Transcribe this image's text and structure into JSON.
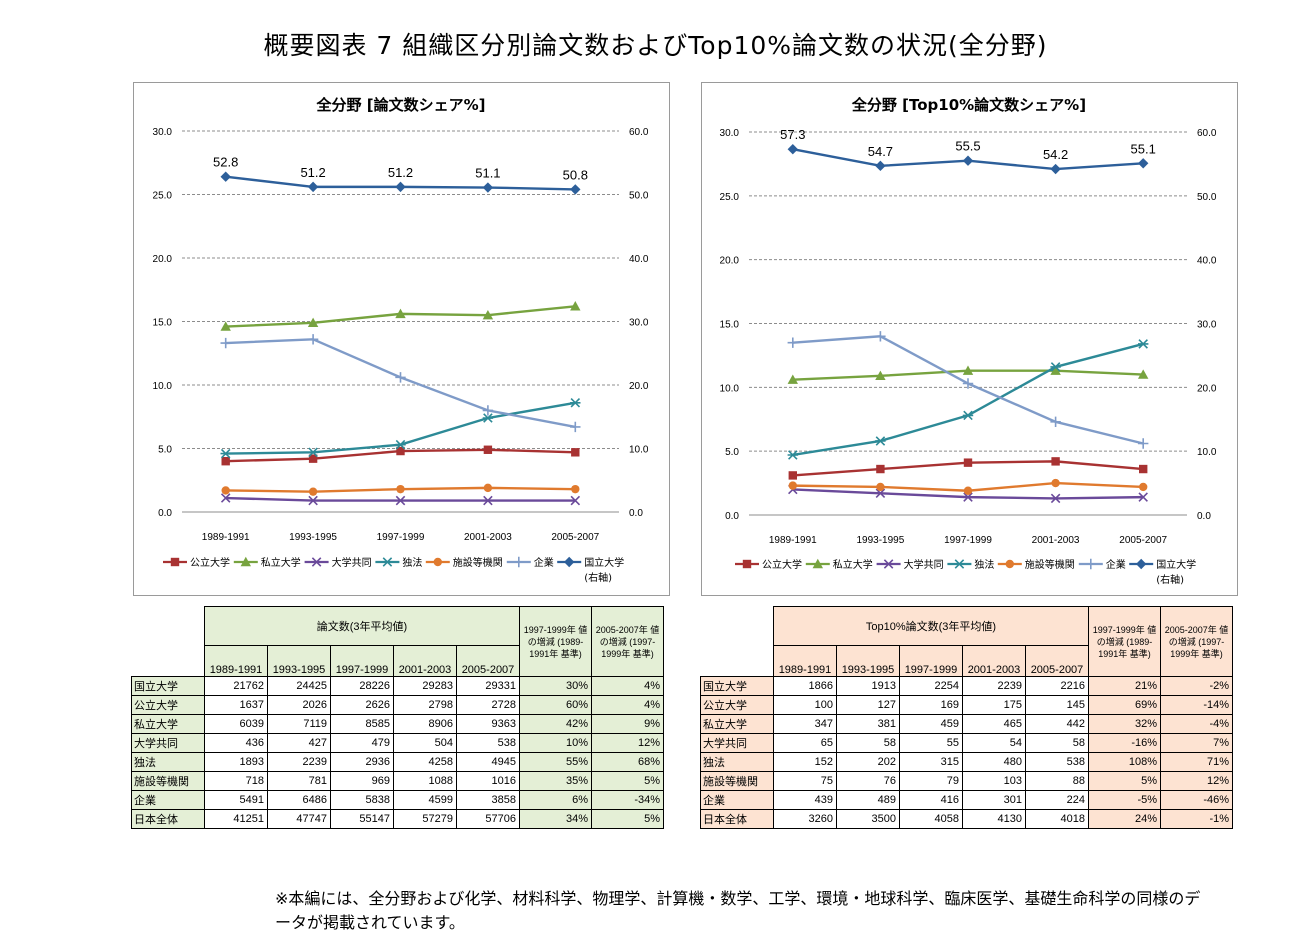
{
  "page_title": "概要図表 7 組織区分別論文数およびTop10%論文数の状況(全分野)",
  "chart_data": [
    {
      "type": "line",
      "title": "全分野 [論文数シェア%]",
      "categories": [
        "1989-1991",
        "1993-1995",
        "1997-1999",
        "2001-2003",
        "2005-2007"
      ],
      "ylim": [
        0,
        30
      ],
      "y_ticks": [
        "0.0",
        "5.0",
        "10.0",
        "15.0",
        "20.0",
        "25.0",
        "30.0"
      ],
      "y2lim": [
        0,
        60
      ],
      "y2_ticks": [
        "0.0",
        "10.0",
        "20.0",
        "30.0",
        "40.0",
        "50.0",
        "60.0"
      ],
      "grid": true,
      "legend_position": "bottom",
      "series": [
        {
          "name": "公立大学",
          "color": "#a83232",
          "marker": "square",
          "axis": "left",
          "values": [
            4.0,
            4.2,
            4.8,
            4.9,
            4.7
          ]
        },
        {
          "name": "私立大学",
          "color": "#77a33f",
          "marker": "triangle",
          "axis": "left",
          "values": [
            14.6,
            14.9,
            15.6,
            15.5,
            16.2
          ]
        },
        {
          "name": "大学共同",
          "color": "#6a4a9a",
          "marker": "x",
          "axis": "left",
          "values": [
            1.1,
            0.9,
            0.9,
            0.9,
            0.9
          ]
        },
        {
          "name": "独法",
          "color": "#2d8a97",
          "marker": "asterisk",
          "axis": "left",
          "values": [
            4.6,
            4.7,
            5.3,
            7.4,
            8.6
          ]
        },
        {
          "name": "施設等機関",
          "color": "#e07a2e",
          "marker": "circle",
          "axis": "left",
          "values": [
            1.7,
            1.6,
            1.8,
            1.9,
            1.8
          ]
        },
        {
          "name": "企業",
          "color": "#7f9bc8",
          "marker": "plus",
          "axis": "left",
          "values": [
            13.3,
            13.6,
            10.6,
            8.0,
            6.7
          ]
        },
        {
          "name": "国立大学",
          "color": "#2d5f9a",
          "marker": "diamond",
          "axis": "right",
          "values": [
            52.8,
            51.2,
            51.2,
            51.1,
            50.8
          ],
          "labels": [
            "52.8",
            "51.2",
            "51.2",
            "51.1",
            "50.8"
          ]
        }
      ],
      "legend_last_note": "(右軸)"
    },
    {
      "type": "line",
      "title": "全分野 [Top10%論文数シェア%]",
      "categories": [
        "1989-1991",
        "1993-1995",
        "1997-1999",
        "2001-2003",
        "2005-2007"
      ],
      "ylim": [
        0,
        30
      ],
      "y_ticks": [
        "0.0",
        "5.0",
        "10.0",
        "15.0",
        "20.0",
        "25.0",
        "30.0"
      ],
      "y2lim": [
        0,
        60
      ],
      "y2_ticks": [
        "0.0",
        "10.0",
        "20.0",
        "30.0",
        "40.0",
        "50.0",
        "60.0"
      ],
      "grid": true,
      "legend_position": "bottom",
      "series": [
        {
          "name": "公立大学",
          "color": "#a83232",
          "marker": "square",
          "axis": "left",
          "values": [
            3.1,
            3.6,
            4.1,
            4.2,
            3.6
          ]
        },
        {
          "name": "私立大学",
          "color": "#77a33f",
          "marker": "triangle",
          "axis": "left",
          "values": [
            10.6,
            10.9,
            11.3,
            11.3,
            11.0
          ]
        },
        {
          "name": "大学共同",
          "color": "#6a4a9a",
          "marker": "x",
          "axis": "left",
          "values": [
            2.0,
            1.7,
            1.4,
            1.3,
            1.4
          ]
        },
        {
          "name": "独法",
          "color": "#2d8a97",
          "marker": "asterisk",
          "axis": "left",
          "values": [
            4.7,
            5.8,
            7.8,
            11.6,
            13.4
          ]
        },
        {
          "name": "施設等機関",
          "color": "#e07a2e",
          "marker": "circle",
          "axis": "left",
          "values": [
            2.3,
            2.2,
            1.9,
            2.5,
            2.2
          ]
        },
        {
          "name": "企業",
          "color": "#7f9bc8",
          "marker": "plus",
          "axis": "left",
          "values": [
            13.5,
            14.0,
            10.3,
            7.3,
            5.6
          ]
        },
        {
          "name": "国立大学",
          "color": "#2d5f9a",
          "marker": "diamond",
          "axis": "right",
          "values": [
            57.3,
            54.7,
            55.5,
            54.2,
            55.1
          ],
          "labels": [
            "57.3",
            "54.7",
            "55.5",
            "54.2",
            "55.1"
          ]
        }
      ],
      "legend_last_note": "(右軸)"
    }
  ],
  "tables": [
    {
      "main_header": "論文数(3年平均値)",
      "change1_header": "1997-1999年 値の増減 (1989-1991年 基準)",
      "change2_header": "2005-2007年 値の増減 (1997-1999年 基準)",
      "years": [
        "1989-1991",
        "1993-1995",
        "1997-1999",
        "2001-2003",
        "2005-2007"
      ],
      "rows": [
        {
          "label": "国立大学",
          "values": [
            "21762",
            "24425",
            "28226",
            "29283",
            "29331"
          ],
          "c1": "30%",
          "c2": "4%"
        },
        {
          "label": "公立大学",
          "values": [
            "1637",
            "2026",
            "2626",
            "2798",
            "2728"
          ],
          "c1": "60%",
          "c2": "4%"
        },
        {
          "label": "私立大学",
          "values": [
            "6039",
            "7119",
            "8585",
            "8906",
            "9363"
          ],
          "c1": "42%",
          "c2": "9%"
        },
        {
          "label": "大学共同",
          "values": [
            "436",
            "427",
            "479",
            "504",
            "538"
          ],
          "c1": "10%",
          "c2": "12%"
        },
        {
          "label": "独法",
          "values": [
            "1893",
            "2239",
            "2936",
            "4258",
            "4945"
          ],
          "c1": "55%",
          "c2": "68%"
        },
        {
          "label": "施設等機関",
          "values": [
            "718",
            "781",
            "969",
            "1088",
            "1016"
          ],
          "c1": "35%",
          "c2": "5%"
        },
        {
          "label": "企業",
          "values": [
            "5491",
            "6486",
            "5838",
            "4599",
            "3858"
          ],
          "c1": "6%",
          "c2": "-34%"
        },
        {
          "label": "日本全体",
          "values": [
            "41251",
            "47747",
            "55147",
            "57279",
            "57706"
          ],
          "c1": "34%",
          "c2": "5%"
        }
      ]
    },
    {
      "main_header": "Top10%論文数(3年平均値)",
      "change1_header": "1997-1999年 値の増減 (1989-1991年 基準)",
      "change2_header": "2005-2007年 値の増減 (1997-1999年 基準)",
      "years": [
        "1989-1991",
        "1993-1995",
        "1997-1999",
        "2001-2003",
        "2005-2007"
      ],
      "rows": [
        {
          "label": "国立大学",
          "values": [
            "1866",
            "1913",
            "2254",
            "2239",
            "2216"
          ],
          "c1": "21%",
          "c2": "-2%"
        },
        {
          "label": "公立大学",
          "values": [
            "100",
            "127",
            "169",
            "175",
            "145"
          ],
          "c1": "69%",
          "c2": "-14%"
        },
        {
          "label": "私立大学",
          "values": [
            "347",
            "381",
            "459",
            "465",
            "442"
          ],
          "c1": "32%",
          "c2": "-4%"
        },
        {
          "label": "大学共同",
          "values": [
            "65",
            "58",
            "55",
            "54",
            "58"
          ],
          "c1": "-16%",
          "c2": "7%"
        },
        {
          "label": "独法",
          "values": [
            "152",
            "202",
            "315",
            "480",
            "538"
          ],
          "c1": "108%",
          "c2": "71%"
        },
        {
          "label": "施設等機関",
          "values": [
            "75",
            "76",
            "79",
            "103",
            "88"
          ],
          "c1": "5%",
          "c2": "12%"
        },
        {
          "label": "企業",
          "values": [
            "439",
            "489",
            "416",
            "301",
            "224"
          ],
          "c1": "-5%",
          "c2": "-46%"
        },
        {
          "label": "日本全体",
          "values": [
            "3260",
            "3500",
            "4058",
            "4130",
            "4018"
          ],
          "c1": "24%",
          "c2": "-1%"
        }
      ]
    }
  ],
  "footnote": "※本編には、全分野および化学、材料科学、物理学、計算機・数学、工学、環境・地球科学、臨床医学、基礎生命科学の同様のデータが掲載されています。"
}
